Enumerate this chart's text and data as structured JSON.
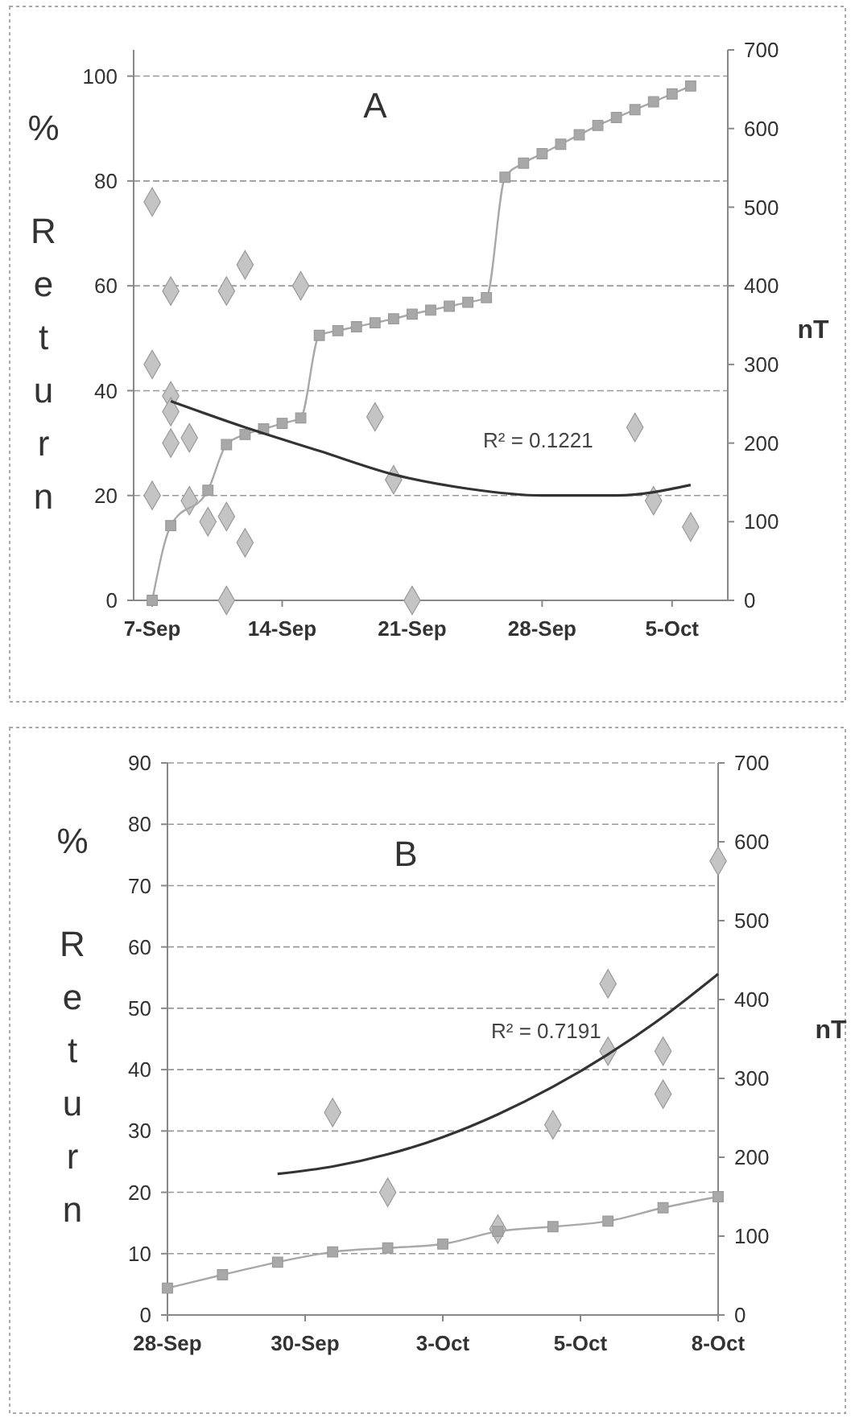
{
  "chart_data": [
    {
      "type": "scatter",
      "title": "A",
      "ylabel": "% Return",
      "y2label": "nT",
      "annotations": [
        "R² = 0.1221"
      ],
      "xlim": [
        "--09-06",
        "--10-08"
      ],
      "xticks": [
        {
          "value": "--09-07",
          "label": "7-Sep"
        },
        {
          "value": "--09-14",
          "label": "14-Sep"
        },
        {
          "value": "--09-21",
          "label": "21-Sep"
        },
        {
          "value": "--09-28",
          "label": "28-Sep"
        },
        {
          "value": "--10-05",
          "label": "5-Oct"
        }
      ],
      "ylim": [
        0,
        105
      ],
      "yticks": [
        0,
        20,
        40,
        60,
        80,
        100
      ],
      "y2lim": [
        0,
        700
      ],
      "y2ticks": [
        0,
        100,
        200,
        300,
        400,
        500,
        600,
        700
      ],
      "grid": "y",
      "series": [
        {
          "marker": "diamond",
          "color": "#c4c4c4",
          "x": [
            "--09-07",
            "--09-08",
            "--09-11",
            "--09-12",
            "--09-15",
            "--09-07",
            "--09-08",
            "--09-08",
            "--09-08",
            "--09-09",
            "--09-07",
            "--09-09",
            "--09-10",
            "--09-11",
            "--09-12",
            "--09-11",
            "--09-19",
            "--09-20",
            "--09-21",
            "--10-03",
            "--10-04",
            "--10-06"
          ],
          "values": [
            76,
            59,
            59,
            64,
            60,
            45,
            39,
            36,
            30,
            31,
            20,
            19,
            15,
            16,
            11,
            0,
            35,
            23,
            0,
            33,
            19,
            14
          ]
        },
        {
          "type": "line",
          "marker": "square",
          "axis": "y2",
          "color": "#a8a8a8",
          "x": [
            "--09-07",
            "--09-08",
            "--09-10",
            "--09-11",
            "--09-12",
            "--09-13",
            "--09-14",
            "--09-15",
            "--09-16",
            "--09-17",
            "--09-18",
            "--09-19",
            "--09-20",
            "--09-21",
            "--09-22",
            "--09-23",
            "--09-24",
            "--09-25",
            "--09-26",
            "--09-27",
            "--09-28",
            "--09-29",
            "--09-30",
            "--10-01",
            "--10-02",
            "--10-03",
            "--10-04",
            "--10-05",
            "--10-06"
          ],
          "values": [
            0,
            95,
            140,
            198,
            211,
            218,
            225,
            232,
            337,
            343,
            348,
            353,
            358,
            364,
            369,
            374,
            379,
            385,
            538,
            556,
            568,
            580,
            592,
            604,
            614,
            624,
            634,
            644,
            654
          ]
        },
        {
          "type": "line",
          "marker": "none",
          "color": "#333333",
          "x": [
            "--09-08",
            "--09-12",
            "--09-16",
            "--09-20",
            "--09-24",
            "--09-28",
            "--10-02",
            "--10-06"
          ],
          "values": [
            38,
            33,
            28.5,
            24,
            21.3,
            20,
            20,
            22
          ]
        }
      ]
    },
    {
      "type": "scatter",
      "title": "B",
      "ylabel": "% Return",
      "y2label": "nT",
      "annotations": [
        "R² = 0.7191"
      ],
      "xlim": [
        "--09-28",
        "--10-08"
      ],
      "xticks": [
        {
          "value": "--09-28",
          "label": "28-Sep"
        },
        {
          "value": "--09-30T12:00",
          "label": "30-Sep"
        },
        {
          "value": "--10-03",
          "label": "3-Oct"
        },
        {
          "value": "--10-05T12:00",
          "label": "5-Oct"
        },
        {
          "value": "--10-08",
          "label": "8-Oct"
        }
      ],
      "ylim": [
        0,
        90
      ],
      "yticks": [
        0,
        10,
        20,
        30,
        40,
        50,
        60,
        70,
        80,
        90
      ],
      "y2lim": [
        0,
        700
      ],
      "y2ticks": [
        0,
        100,
        200,
        300,
        400,
        500,
        600,
        700
      ],
      "grid": "y",
      "series": [
        {
          "marker": "diamond",
          "color": "#c4c4c4",
          "x": [
            "--10-01",
            "--10-02",
            "--10-04",
            "--10-05",
            "--10-06",
            "--10-06",
            "--10-07",
            "--10-07",
            "--10-08"
          ],
          "values": [
            33,
            20,
            14,
            31,
            43,
            54,
            43,
            36,
            74
          ]
        },
        {
          "type": "line",
          "marker": "square",
          "axis": "y2",
          "color": "#a8a8a8",
          "x": [
            "--09-28",
            "--09-29",
            "--09-30",
            "--10-01",
            "--10-02",
            "--10-03",
            "--10-04",
            "--10-05",
            "--10-06",
            "--10-07",
            "--10-08"
          ],
          "values": [
            34,
            51,
            67,
            80,
            85,
            90,
            106,
            112,
            119,
            136,
            150
          ]
        },
        {
          "type": "line",
          "marker": "none",
          "color": "#333333",
          "x": [
            "--09-30",
            "--10-01",
            "--10-02",
            "--10-03",
            "--10-04",
            "--10-05",
            "--10-06",
            "--10-07",
            "--10-08"
          ],
          "values": [
            23,
            24.2,
            26.2,
            29,
            32.7,
            37.2,
            42.5,
            48.6,
            55.6
          ]
        }
      ]
    }
  ]
}
